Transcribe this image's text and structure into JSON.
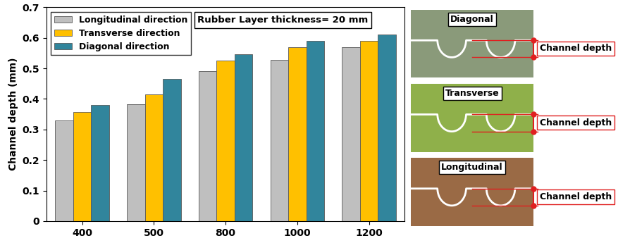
{
  "chart_data": {
    "type": "bar",
    "y_label": "Channel depth (mm)",
    "annotation": "Rubber Layer thickness= 20 mm",
    "categories": [
      "400",
      "500",
      "800",
      "1000",
      "1200"
    ],
    "series": [
      {
        "name": "Longitudinal direction",
        "color": "#bfbfbf",
        "values": [
          0.33,
          0.383,
          0.49,
          0.527,
          0.57
        ]
      },
      {
        "name": "Transverse direction",
        "color": "#ffc000",
        "values": [
          0.358,
          0.415,
          0.525,
          0.57,
          0.59
        ]
      },
      {
        "name": "Diagonal direction",
        "color": "#31859c",
        "values": [
          0.38,
          0.465,
          0.547,
          0.59,
          0.61
        ]
      }
    ],
    "ylim": [
      0,
      0.7
    ],
    "yticks": [
      0,
      0.1,
      0.2,
      0.3,
      0.4,
      0.5,
      0.6,
      0.7
    ],
    "grid": false,
    "legend": "upper left"
  },
  "side_panels": [
    {
      "title": "Diagonal",
      "label": "Channel depth"
    },
    {
      "title": "Transverse",
      "label": "Channel depth"
    },
    {
      "title": "Longitudinal",
      "label": "Channel depth"
    }
  ]
}
